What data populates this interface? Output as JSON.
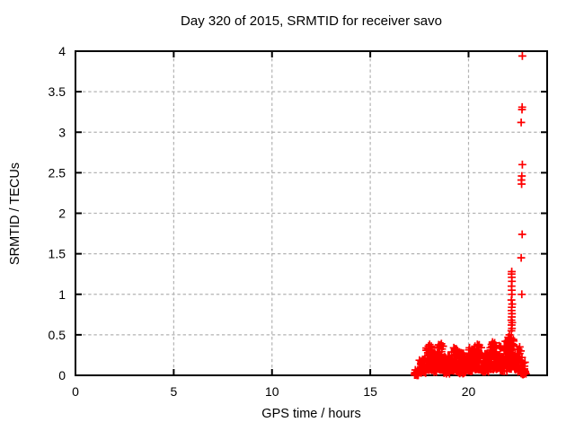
{
  "chart_data": {
    "type": "scatter",
    "title": "Day 320 of 2015, SRMTID for receiver savo",
    "xlabel": "GPS time / hours",
    "ylabel": "SRMTID / TECUs",
    "xlim": [
      0,
      24
    ],
    "ylim": [
      0,
      4
    ],
    "xticks": [
      0,
      5,
      10,
      15,
      20
    ],
    "xtick_labels": [
      "0",
      "5",
      "10",
      "15",
      "20"
    ],
    "yticks": [
      0,
      0.5,
      1,
      1.5,
      2,
      2.5,
      3,
      3.5,
      4
    ],
    "ytick_labels": [
      "0",
      "0.5",
      "1",
      "1.5",
      "2",
      "2.5",
      "3",
      "3.5",
      "4"
    ],
    "grid": true,
    "legend_position": "none",
    "marker": "plus",
    "marker_color": "#ff0000",
    "series_name": "SRMTID",
    "data_x_range_with_points": [
      17.25,
      22.95
    ],
    "notable_points": [
      [
        17.28,
        0.02
      ],
      [
        17.33,
        0.03
      ],
      [
        17.38,
        0.02
      ],
      [
        17.96,
        0.36
      ],
      [
        18.02,
        0.38
      ],
      [
        18.55,
        0.37
      ],
      [
        18.62,
        0.39
      ],
      [
        19.25,
        0.34
      ],
      [
        20.05,
        0.34
      ],
      [
        20.45,
        0.38
      ],
      [
        20.52,
        0.36
      ],
      [
        21.22,
        0.41
      ],
      [
        21.33,
        0.4
      ],
      [
        21.88,
        0.42
      ],
      [
        22.02,
        0.47
      ],
      [
        22.08,
        0.5
      ],
      [
        22.12,
        0.45
      ],
      [
        22.18,
        0.55
      ],
      [
        22.21,
        0.58
      ],
      [
        22.19,
        0.62
      ],
      [
        22.22,
        0.65
      ],
      [
        22.18,
        0.68
      ],
      [
        22.2,
        0.72
      ],
      [
        22.21,
        0.76
      ],
      [
        22.19,
        0.8
      ],
      [
        22.2,
        0.84
      ],
      [
        22.22,
        0.88
      ],
      [
        22.18,
        0.93
      ],
      [
        22.21,
        1.0
      ],
      [
        22.2,
        1.05
      ],
      [
        22.19,
        1.1
      ],
      [
        22.21,
        1.16
      ],
      [
        22.2,
        1.21
      ],
      [
        22.19,
        1.25
      ],
      [
        22.2,
        1.28
      ],
      [
        22.71,
        1.0
      ],
      [
        22.68,
        1.45
      ],
      [
        22.73,
        1.74
      ],
      [
        22.7,
        2.36
      ],
      [
        22.69,
        2.41
      ],
      [
        22.71,
        2.46
      ],
      [
        22.74,
        2.6
      ],
      [
        22.68,
        3.12
      ],
      [
        22.72,
        3.28
      ],
      [
        22.73,
        3.31
      ],
      [
        22.74,
        3.94
      ],
      [
        22.6,
        0.35
      ],
      [
        22.66,
        0.3
      ],
      [
        22.72,
        0.22
      ],
      [
        22.78,
        0.15
      ],
      [
        22.84,
        0.08
      ],
      [
        22.88,
        0.04
      ],
      [
        22.92,
        0.02
      ]
    ],
    "dense_band_segments_x0_x1_ymin_ymax_n": [
      [
        17.25,
        17.45,
        0.0,
        0.07,
        35
      ],
      [
        17.5,
        17.85,
        0.03,
        0.22,
        45
      ],
      [
        17.85,
        18.15,
        0.06,
        0.38,
        45
      ],
      [
        18.15,
        18.45,
        0.04,
        0.28,
        45
      ],
      [
        18.45,
        18.75,
        0.07,
        0.38,
        45
      ],
      [
        18.75,
        19.05,
        0.02,
        0.24,
        45
      ],
      [
        19.05,
        19.45,
        0.05,
        0.33,
        55
      ],
      [
        19.45,
        19.85,
        0.02,
        0.28,
        55
      ],
      [
        19.85,
        20.25,
        0.05,
        0.33,
        55
      ],
      [
        20.25,
        20.65,
        0.07,
        0.38,
        55
      ],
      [
        20.65,
        21.05,
        0.04,
        0.28,
        55
      ],
      [
        21.05,
        21.55,
        0.07,
        0.4,
        65
      ],
      [
        21.55,
        21.95,
        0.05,
        0.38,
        55
      ],
      [
        21.95,
        22.35,
        0.08,
        0.52,
        60
      ],
      [
        22.35,
        22.65,
        0.04,
        0.34,
        35
      ],
      [
        22.65,
        22.9,
        0.01,
        0.18,
        25
      ]
    ],
    "random_seed": 1320
  },
  "style": {
    "background": "#ffffff",
    "axis_color": "#000000",
    "grid_color": "#b3b3b3",
    "marker_color": "#ff0000",
    "text_color": "#000000"
  }
}
